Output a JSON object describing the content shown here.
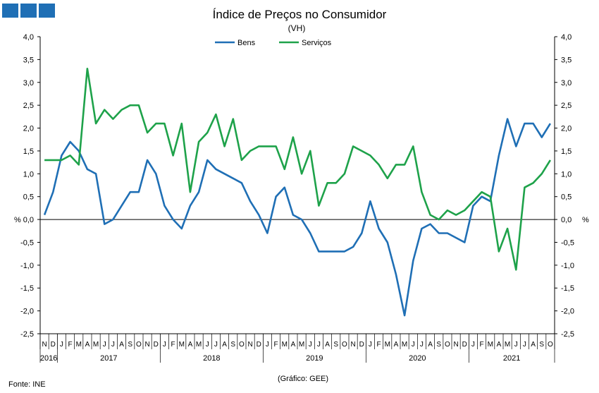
{
  "logo_color": "#1f6fb5",
  "chart_data": {
    "type": "line",
    "title": "Índice de Preços no Consumidor",
    "subtitle": "(VH)",
    "ylabel_left": "%",
    "ylabel_right": "%",
    "ylim": [
      -2.5,
      4.0
    ],
    "yticks": [
      "4,0",
      "3,5",
      "3,0",
      "2,5",
      "2,0",
      "1,5",
      "1,0",
      "0,5",
      "0,0",
      "-0,5",
      "-1,0",
      "-1,5",
      "-2,0",
      "-2,5"
    ],
    "grid": false,
    "legend_position": "top-center",
    "month_labels": [
      "N",
      "D",
      "J",
      "F",
      "M",
      "A",
      "M",
      "J",
      "J",
      "A",
      "S",
      "O",
      "N",
      "D",
      "J",
      "F",
      "M",
      "A",
      "M",
      "J",
      "J",
      "A",
      "S",
      "O",
      "N",
      "D",
      "J",
      "F",
      "M",
      "A",
      "M",
      "J",
      "J",
      "A",
      "S",
      "O",
      "N",
      "D",
      "J",
      "F",
      "M",
      "A",
      "M",
      "J",
      "J",
      "A",
      "S",
      "O",
      "N",
      "D",
      "J",
      "F",
      "M",
      "A",
      "M",
      "J",
      "J",
      "A",
      "S",
      "O"
    ],
    "year_labels": [
      {
        "label": "2016",
        "start": 0,
        "end": 1
      },
      {
        "label": "2017",
        "start": 2,
        "end": 13
      },
      {
        "label": "2018",
        "start": 14,
        "end": 25
      },
      {
        "label": "2019",
        "start": 26,
        "end": 37
      },
      {
        "label": "2020",
        "start": 38,
        "end": 49
      },
      {
        "label": "2021",
        "start": 50,
        "end": 59
      }
    ],
    "series": [
      {
        "name": "Bens",
        "color": "#1f6fb5",
        "values": [
          0.1,
          0.6,
          1.4,
          1.7,
          1.5,
          1.1,
          1.0,
          -0.1,
          0.0,
          0.3,
          0.6,
          0.6,
          1.3,
          1.0,
          0.3,
          0.0,
          -0.2,
          0.3,
          0.6,
          1.3,
          1.1,
          1.0,
          0.9,
          0.8,
          0.4,
          0.1,
          -0.3,
          0.5,
          0.7,
          0.1,
          0.0,
          -0.3,
          -0.7,
          -0.7,
          -0.7,
          -0.7,
          -0.6,
          -0.3,
          0.4,
          -0.2,
          -0.5,
          -1.2,
          -2.1,
          -0.9,
          -0.2,
          -0.1,
          -0.3,
          -0.3,
          -0.4,
          -0.5,
          0.3,
          0.5,
          0.4,
          1.4,
          2.2,
          1.6,
          2.1,
          2.1,
          1.8,
          2.1
        ]
      },
      {
        "name": "Serviços",
        "color": "#1ea24a",
        "values": [
          1.3,
          1.3,
          1.3,
          1.4,
          1.2,
          3.3,
          2.1,
          2.4,
          2.2,
          2.4,
          2.5,
          2.5,
          1.9,
          2.1,
          2.1,
          1.4,
          2.1,
          0.6,
          1.7,
          1.9,
          2.3,
          1.6,
          2.2,
          1.3,
          1.5,
          1.6,
          1.6,
          1.6,
          1.1,
          1.8,
          1.0,
          1.5,
          0.3,
          0.8,
          0.8,
          1.0,
          1.6,
          1.5,
          1.4,
          1.2,
          0.9,
          1.2,
          1.2,
          1.6,
          0.6,
          0.1,
          0.0,
          0.2,
          0.1,
          0.2,
          0.4,
          0.6,
          0.5,
          -0.7,
          -0.2,
          -1.1,
          0.7,
          0.8,
          1.0,
          1.3
        ]
      }
    ],
    "footer_source": "Fonte: INE",
    "footer_credit": "(Gráfico: GEE)"
  }
}
